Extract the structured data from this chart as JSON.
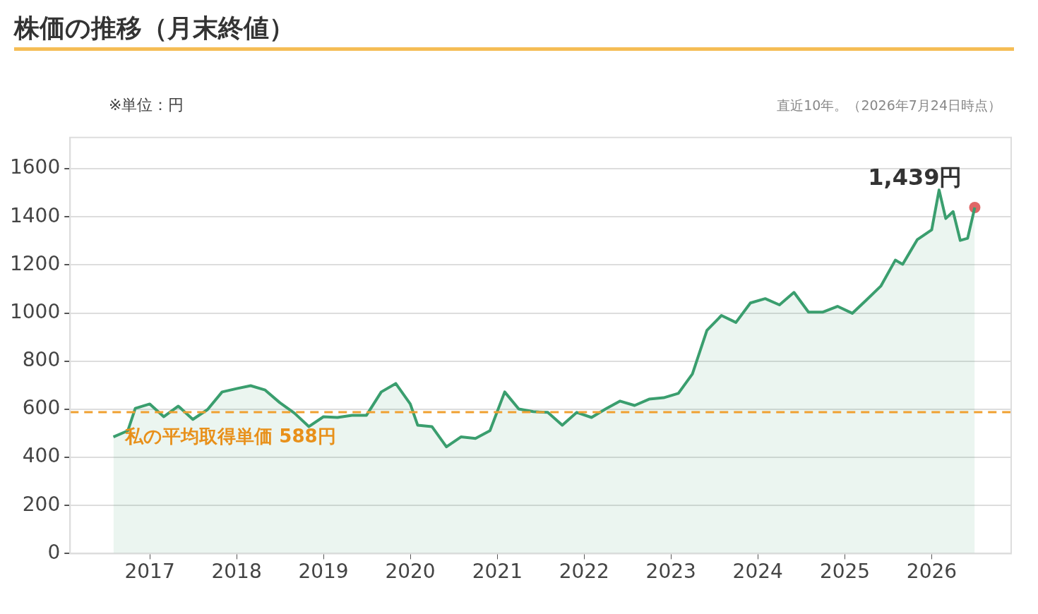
{
  "chart_data": {
    "type": "area",
    "title": "株価の推移（月末終値）",
    "annotations": [
      "※単位：円",
      "直近10年。（2026年7月24日時点）",
      {
        "text": "1,439円",
        "x": "2026-07",
        "y": 1439
      }
    ],
    "xlim": [
      "2016-02",
      "2026-12"
    ],
    "xticks": [
      "2017",
      "2018",
      "2019",
      "2020",
      "2021",
      "2022",
      "2023",
      "2024",
      "2025",
      "2026"
    ],
    "ylim": [
      0,
      1730
    ],
    "yticks": [
      0,
      200,
      400,
      600,
      800,
      1000,
      1200,
      1400,
      1600
    ],
    "grid": "y",
    "legend": false,
    "ref_lines": [
      {
        "axis": "y",
        "value": 588,
        "label": "私の平均取得単価 588円",
        "color": "#f0a030",
        "line_style": "dashed"
      }
    ],
    "series": [
      {
        "type": "area",
        "color": "#3a9e6e",
        "marker": "none",
        "x": [
          "2016-08",
          "2016-10",
          "2016-11",
          "2017-01",
          "2017-03",
          "2017-05",
          "2017-07",
          "2017-09",
          "2017-11",
          "2018-01",
          "2018-03",
          "2018-05",
          "2018-07",
          "2018-09",
          "2018-11",
          "2019-01",
          "2019-03",
          "2019-05",
          "2019-07",
          "2019-09",
          "2019-11",
          "2020-01",
          "2020-02",
          "2020-04",
          "2020-06",
          "2020-08",
          "2020-10",
          "2020-12",
          "2021-02",
          "2021-04",
          "2021-06",
          "2021-08",
          "2021-10",
          "2021-12",
          "2022-02",
          "2022-04",
          "2022-06",
          "2022-08",
          "2022-10",
          "2022-12",
          "2023-02",
          "2023-04",
          "2023-06",
          "2023-08",
          "2023-10",
          "2023-12",
          "2024-02",
          "2024-04",
          "2024-06",
          "2024-08",
          "2024-10",
          "2024-12",
          "2025-02",
          "2025-04",
          "2025-06",
          "2025-08",
          "2025-09",
          "2025-10",
          "2025-11",
          "2026-01",
          "2026-02",
          "2026-03",
          "2026-04",
          "2026-05",
          "2026-06",
          "2026-07"
        ],
        "values": [
          485,
          511,
          604,
          622,
          569,
          613,
          558,
          599,
          672,
          686,
          698,
          680,
          628,
          584,
          528,
          569,
          566,
          575,
          575,
          672,
          707,
          622,
          534,
          528,
          444,
          485,
          479,
          511,
          672,
          601,
          590,
          587,
          534,
          587,
          566,
          601,
          634,
          616,
          642,
          648,
          666,
          747,
          928,
          990,
          961,
          1042,
          1060,
          1034,
          1086,
          1004,
          1004,
          1028,
          999,
          1054,
          1112,
          1220,
          1203,
          1253,
          1305,
          1346,
          1512,
          1393,
          1422,
          1302,
          1311,
          1439
        ]
      },
      {
        "type": "scatter",
        "color": "#e06666",
        "marker": "circle",
        "x": [
          "2026-07"
        ],
        "values": [
          1439
        ]
      }
    ]
  }
}
